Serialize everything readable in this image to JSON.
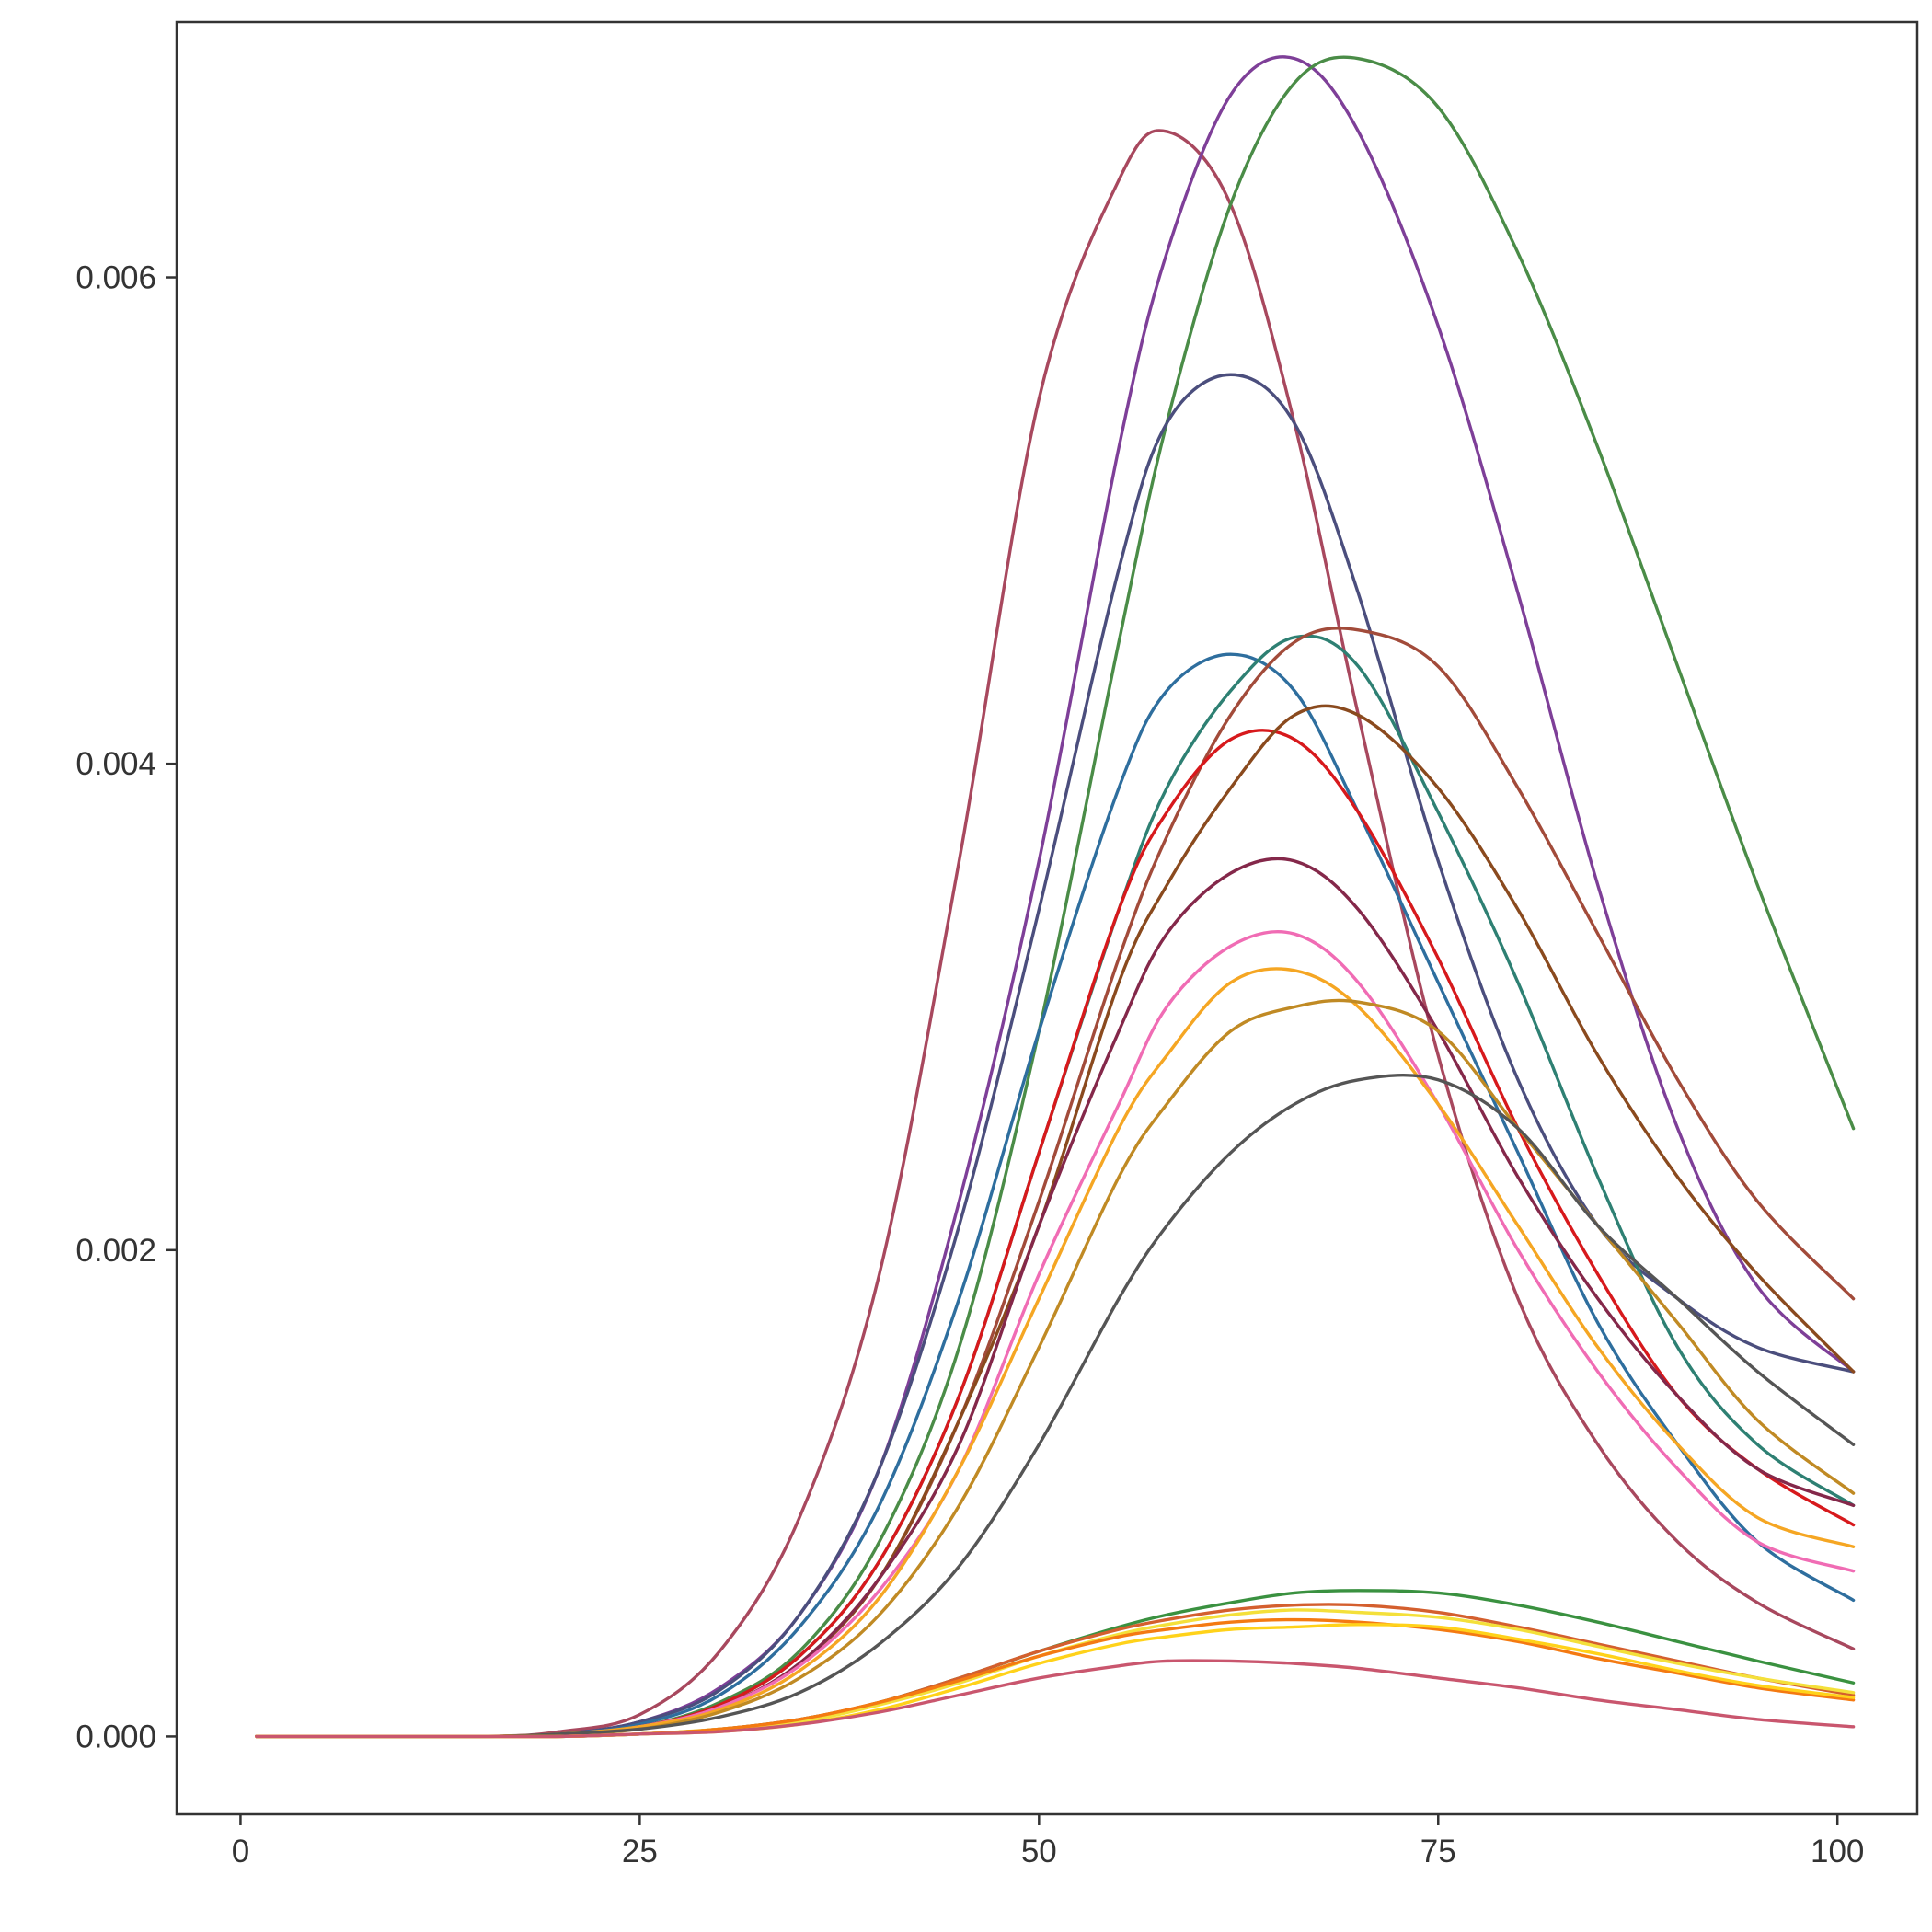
{
  "chart_data": {
    "type": "line",
    "title": "",
    "xlabel": "",
    "ylabel": "",
    "xlim": [
      -4,
      105
    ],
    "ylim": [
      -0.00032,
      0.00705
    ],
    "x_ticks": [
      0,
      25,
      50,
      75,
      100
    ],
    "x_tick_labels": [
      "0",
      "25",
      "50",
      "75",
      "100"
    ],
    "y_ticks": [
      0,
      0.002,
      0.004,
      0.006
    ],
    "y_tick_labels": [
      "0.000",
      "0.002",
      "0.004",
      "0.006"
    ],
    "grid": false,
    "legend": "none",
    "x_range": [
      1,
      101
    ],
    "curve_note": "Each series is a smooth unimodal curve; values listed at the x positions given in sample_x.",
    "sample_x": [
      1,
      15,
      20,
      25,
      30,
      35,
      40,
      45,
      50,
      55,
      58,
      62,
      66,
      70,
      75,
      80,
      85,
      90,
      95,
      101
    ],
    "series": [
      {
        "color": "#A8485E",
        "values": [
          0,
          0,
          2e-05,
          9e-05,
          0.00035,
          0.0009,
          0.0019,
          0.0036,
          0.0055,
          0.0064,
          0.0066,
          0.0063,
          0.0054,
          0.0042,
          0.0028,
          0.0018,
          0.0012,
          0.0008,
          0.00055,
          0.00036
        ]
      },
      {
        "color": "#7E3F98",
        "values": [
          0,
          0,
          1e-05,
          6e-05,
          0.0002,
          0.0005,
          0.0011,
          0.0022,
          0.0036,
          0.0053,
          0.0061,
          0.00675,
          0.0069,
          0.0066,
          0.0058,
          0.0047,
          0.0035,
          0.0025,
          0.00185,
          0.0015
        ]
      },
      {
        "color": "#4A8C47",
        "values": [
          0,
          0,
          1e-05,
          4e-05,
          0.00014,
          0.00035,
          0.0008,
          0.0016,
          0.0029,
          0.0045,
          0.0054,
          0.0063,
          0.0068,
          0.0069,
          0.0067,
          0.0061,
          0.0053,
          0.0044,
          0.0035,
          0.0025
        ]
      },
      {
        "color": "#4B4E7D",
        "values": [
          0,
          0,
          1e-05,
          6e-05,
          0.00019,
          0.0005,
          0.0011,
          0.0021,
          0.0034,
          0.0048,
          0.0054,
          0.0056,
          0.0054,
          0.0047,
          0.0036,
          0.0027,
          0.0021,
          0.0018,
          0.0016,
          0.0015
        ]
      },
      {
        "color": "#2E6E9E",
        "values": [
          0,
          0,
          1e-05,
          5e-05,
          0.00017,
          0.00045,
          0.00095,
          0.0018,
          0.0029,
          0.0039,
          0.0043,
          0.00445,
          0.0043,
          0.0038,
          0.0031,
          0.0024,
          0.0017,
          0.0012,
          0.0008,
          0.00056
        ]
      },
      {
        "color": "#2E8073",
        "values": [
          0,
          0,
          1e-05,
          4e-05,
          0.00013,
          0.00033,
          0.00072,
          0.0014,
          0.0024,
          0.0034,
          0.0039,
          0.0043,
          0.00452,
          0.0044,
          0.0038,
          0.0031,
          0.0023,
          0.0016,
          0.0012,
          0.00095
        ]
      },
      {
        "color": "#A24B3A",
        "values": [
          0,
          0,
          1e-05,
          4e-05,
          0.00012,
          0.0003,
          0.00065,
          0.0013,
          0.0022,
          0.0032,
          0.0037,
          0.0042,
          0.0045,
          0.00455,
          0.0044,
          0.0039,
          0.0033,
          0.0027,
          0.0022,
          0.0018
        ]
      },
      {
        "color": "#D7191C",
        "values": [
          0,
          0,
          1e-05,
          4e-05,
          0.00013,
          0.00033,
          0.00072,
          0.0014,
          0.0024,
          0.0034,
          0.0038,
          0.0041,
          0.0041,
          0.0038,
          0.0032,
          0.0025,
          0.0019,
          0.0014,
          0.0011,
          0.00087
        ]
      },
      {
        "color": "#8A4A1E",
        "values": [
          0,
          0,
          1e-05,
          4e-05,
          0.00012,
          0.0003,
          0.00065,
          0.0013,
          0.0021,
          0.0031,
          0.0035,
          0.0039,
          0.0042,
          0.0042,
          0.0039,
          0.0034,
          0.0028,
          0.0023,
          0.0019,
          0.0015
        ]
      },
      {
        "color": "#84284A",
        "values": [
          0,
          0,
          1e-05,
          4e-05,
          0.00012,
          0.0003,
          0.00065,
          0.0012,
          0.0021,
          0.0029,
          0.0033,
          0.00355,
          0.0036,
          0.0034,
          0.0029,
          0.0023,
          0.0018,
          0.0014,
          0.0011,
          0.00095
        ]
      },
      {
        "color": "#F06CB4",
        "values": [
          0,
          0,
          1e-05,
          4e-05,
          0.00012,
          0.00029,
          0.0006,
          0.0011,
          0.0019,
          0.0026,
          0.003,
          0.00325,
          0.0033,
          0.0031,
          0.0026,
          0.002,
          0.0015,
          0.0011,
          0.0008,
          0.00068
        ]
      },
      {
        "color": "#F5A623",
        "values": [
          0,
          0,
          1e-05,
          4e-05,
          0.00011,
          0.00027,
          0.00057,
          0.0011,
          0.0018,
          0.0025,
          0.0028,
          0.0031,
          0.00315,
          0.003,
          0.0026,
          0.0021,
          0.0016,
          0.0012,
          0.0009,
          0.00078
        ]
      },
      {
        "color": "#C08A24",
        "values": [
          0,
          0,
          1e-05,
          3e-05,
          0.0001,
          0.00024,
          0.0005,
          0.00095,
          0.0016,
          0.0023,
          0.0026,
          0.0029,
          0.003,
          0.00302,
          0.0029,
          0.0025,
          0.0021,
          0.0017,
          0.0013,
          0.001
        ]
      },
      {
        "color": "#555555",
        "values": [
          0,
          0,
          1e-05,
          3e-05,
          8e-05,
          0.00018,
          0.00038,
          0.0007,
          0.0012,
          0.0018,
          0.0021,
          0.0024,
          0.0026,
          0.0027,
          0.0027,
          0.0025,
          0.0021,
          0.0018,
          0.0015,
          0.0012
        ]
      },
      {
        "color": "#3A9140",
        "values": [
          0,
          0,
          0,
          1e-05,
          3e-05,
          7e-05,
          0.00014,
          0.00024,
          0.00035,
          0.00045,
          0.0005,
          0.00055,
          0.00059,
          0.0006,
          0.00059,
          0.00054,
          0.00047,
          0.00039,
          0.00031,
          0.00022
        ]
      },
      {
        "color": "#D45F2E",
        "values": [
          0,
          0,
          0,
          1e-05,
          3e-05,
          7e-05,
          0.00014,
          0.00024,
          0.00035,
          0.00044,
          0.00048,
          0.00052,
          0.00054,
          0.00054,
          0.00051,
          0.00045,
          0.00038,
          0.00031,
          0.00024,
          0.00017
        ]
      },
      {
        "color": "#F4E03A",
        "values": [
          0,
          0,
          0,
          1e-05,
          3e-05,
          6e-05,
          0.00013,
          0.00022,
          0.00033,
          0.00042,
          0.00046,
          0.0005,
          0.00052,
          0.00051,
          0.00049,
          0.00044,
          0.00037,
          0.0003,
          0.00024,
          0.00018
        ]
      },
      {
        "color": "#F47A12",
        "values": [
          0,
          0,
          0,
          1e-05,
          3e-05,
          7e-05,
          0.00014,
          0.00023,
          0.00033,
          0.00041,
          0.00044,
          0.00047,
          0.00048,
          0.00047,
          0.00044,
          0.00039,
          0.00032,
          0.00026,
          0.0002,
          0.00015
        ]
      },
      {
        "color": "#FFD21A",
        "values": [
          0,
          0,
          0,
          1e-05,
          2e-05,
          5e-05,
          0.00011,
          0.0002,
          0.0003,
          0.00038,
          0.00041,
          0.00044,
          0.00045,
          0.00046,
          0.00045,
          0.0004,
          0.00034,
          0.00027,
          0.00021,
          0.00016
        ]
      },
      {
        "color": "#C9566E",
        "values": [
          0,
          0,
          0,
          1e-05,
          2e-05,
          5e-05,
          0.0001,
          0.00017,
          0.00024,
          0.00029,
          0.00031,
          0.00031,
          0.0003,
          0.00028,
          0.00024,
          0.0002,
          0.00015,
          0.00011,
          7e-05,
          4e-05
        ]
      }
    ]
  }
}
